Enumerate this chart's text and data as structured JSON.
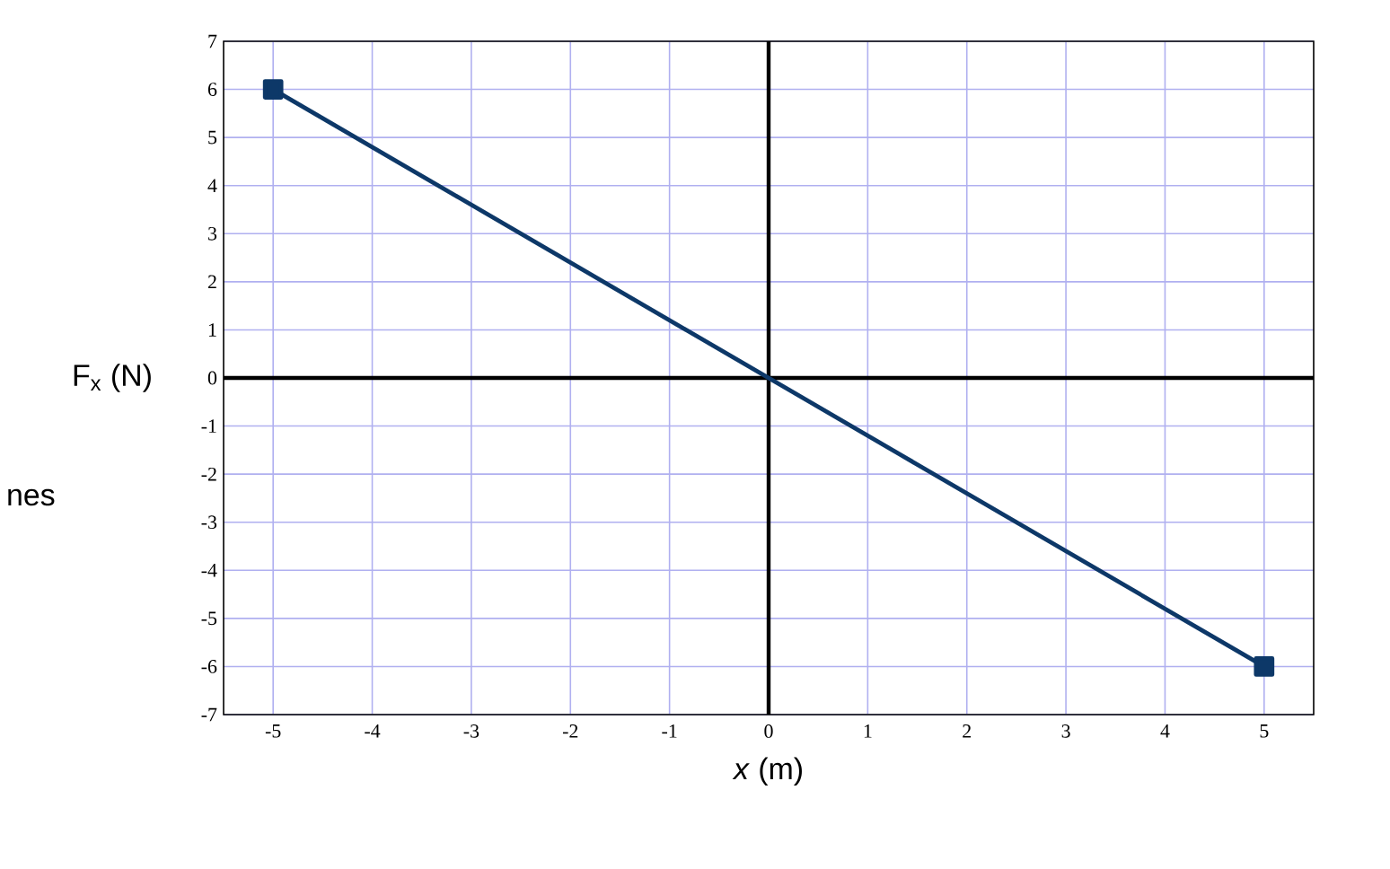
{
  "chart_data": {
    "type": "line",
    "xlabel": "*x* (m)",
    "ylabel": "F$_{x}$ (N)",
    "annotations": [
      "nes"
    ],
    "x": [
      -5,
      5
    ],
    "series": [
      {
        "color": "#0d3868",
        "values": [
          6,
          -6
        ]
      }
    ],
    "xlim": [
      -5.5,
      5.5
    ],
    "ylim": [
      -7,
      7
    ],
    "xticks": [
      -5,
      -4,
      -3,
      -2,
      -1,
      0,
      1,
      2,
      3,
      4,
      5
    ],
    "yticks": [
      -7,
      -6,
      -5,
      -4,
      -3,
      -2,
      -1,
      0,
      1,
      2,
      3,
      4,
      5,
      6,
      7
    ],
    "grid": true,
    "marker": "square",
    "line_style": "solid"
  }
}
